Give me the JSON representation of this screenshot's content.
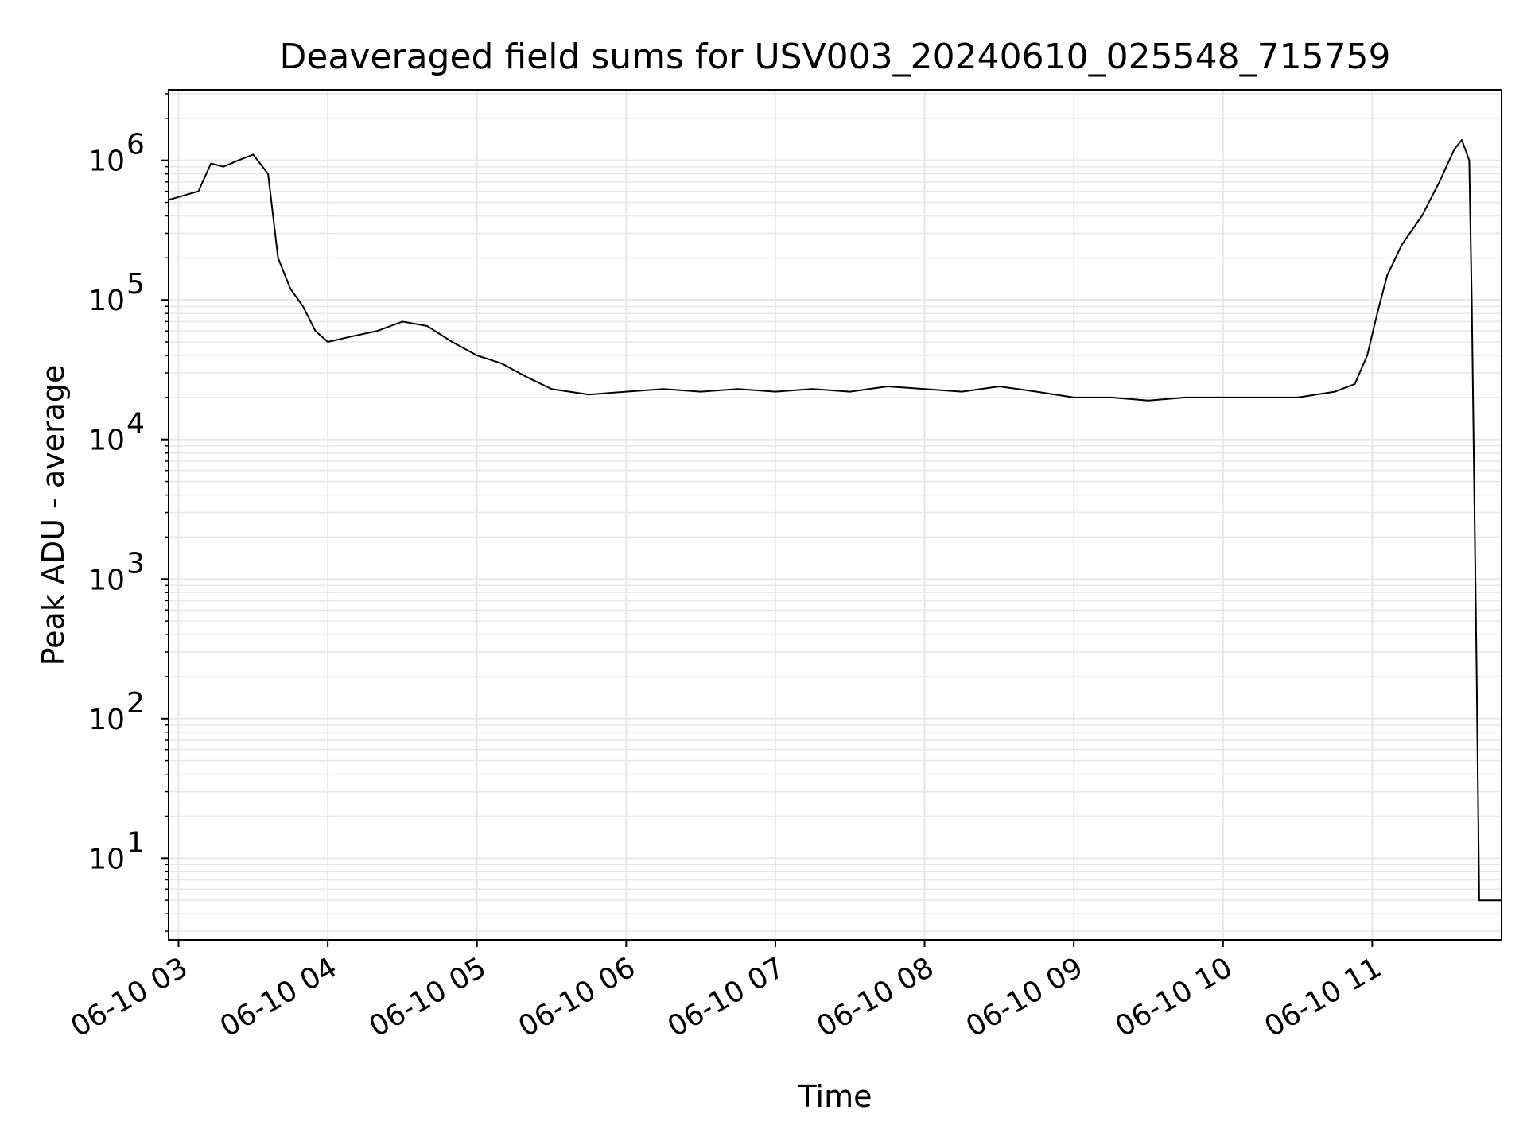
{
  "chart_data": {
    "type": "line",
    "title": "Deaveraged field sums for USV003_20240610_025548_715759",
    "xlabel": "Time",
    "ylabel": "Peak ADU - average",
    "yscale": "log",
    "ylim": [
      2.6,
      3200000
    ],
    "xlim": [
      "2024-06-10T02:56:00",
      "2024-06-10T11:52:00"
    ],
    "grid": true,
    "grid_minor": true,
    "legend": "none",
    "colors": {
      "line": "#000000",
      "grid": "#e6e6e6",
      "axes": "#000000",
      "background": "#ffffff"
    },
    "x_ticks": [
      {
        "t": "2024-06-10T03:00:00",
        "label": "06-10 03"
      },
      {
        "t": "2024-06-10T04:00:00",
        "label": "06-10 04"
      },
      {
        "t": "2024-06-10T05:00:00",
        "label": "06-10 05"
      },
      {
        "t": "2024-06-10T06:00:00",
        "label": "06-10 06"
      },
      {
        "t": "2024-06-10T07:00:00",
        "label": "06-10 07"
      },
      {
        "t": "2024-06-10T08:00:00",
        "label": "06-10 08"
      },
      {
        "t": "2024-06-10T09:00:00",
        "label": "06-10 09"
      },
      {
        "t": "2024-06-10T10:00:00",
        "label": "06-10 10"
      },
      {
        "t": "2024-06-10T11:00:00",
        "label": "06-10 11"
      }
    ],
    "y_ticks": [
      {
        "value": 10,
        "base": "10",
        "exp": "1"
      },
      {
        "value": 100,
        "base": "10",
        "exp": "2"
      },
      {
        "value": 1000,
        "base": "10",
        "exp": "3"
      },
      {
        "value": 10000,
        "base": "10",
        "exp": "4"
      },
      {
        "value": 100000,
        "base": "10",
        "exp": "5"
      },
      {
        "value": 1000000,
        "base": "10",
        "exp": "6"
      }
    ],
    "series": [
      {
        "points": [
          [
            "2024-06-10T02:56:00",
            520000
          ],
          [
            "2024-06-10T03:02:00",
            560000
          ],
          [
            "2024-06-10T03:08:00",
            600000
          ],
          [
            "2024-06-10T03:13:00",
            950000
          ],
          [
            "2024-06-10T03:18:00",
            900000
          ],
          [
            "2024-06-10T03:24:00",
            1000000
          ],
          [
            "2024-06-10T03:30:00",
            1100000
          ],
          [
            "2024-06-10T03:36:00",
            800000
          ],
          [
            "2024-06-10T03:40:00",
            200000
          ],
          [
            "2024-06-10T03:45:00",
            120000
          ],
          [
            "2024-06-10T03:50:00",
            90000
          ],
          [
            "2024-06-10T03:55:00",
            60000
          ],
          [
            "2024-06-10T04:00:00",
            50000
          ],
          [
            "2024-06-10T04:10:00",
            55000
          ],
          [
            "2024-06-10T04:20:00",
            60000
          ],
          [
            "2024-06-10T04:30:00",
            70000
          ],
          [
            "2024-06-10T04:40:00",
            65000
          ],
          [
            "2024-06-10T04:50:00",
            50000
          ],
          [
            "2024-06-10T05:00:00",
            40000
          ],
          [
            "2024-06-10T05:10:00",
            35000
          ],
          [
            "2024-06-10T05:20:00",
            28000
          ],
          [
            "2024-06-10T05:30:00",
            23000
          ],
          [
            "2024-06-10T05:45:00",
            21000
          ],
          [
            "2024-06-10T06:00:00",
            22000
          ],
          [
            "2024-06-10T06:15:00",
            23000
          ],
          [
            "2024-06-10T06:30:00",
            22000
          ],
          [
            "2024-06-10T06:45:00",
            23000
          ],
          [
            "2024-06-10T07:00:00",
            22000
          ],
          [
            "2024-06-10T07:15:00",
            23000
          ],
          [
            "2024-06-10T07:30:00",
            22000
          ],
          [
            "2024-06-10T07:45:00",
            24000
          ],
          [
            "2024-06-10T08:00:00",
            23000
          ],
          [
            "2024-06-10T08:15:00",
            22000
          ],
          [
            "2024-06-10T08:30:00",
            24000
          ],
          [
            "2024-06-10T08:45:00",
            22000
          ],
          [
            "2024-06-10T09:00:00",
            20000
          ],
          [
            "2024-06-10T09:15:00",
            20000
          ],
          [
            "2024-06-10T09:30:00",
            19000
          ],
          [
            "2024-06-10T09:45:00",
            20000
          ],
          [
            "2024-06-10T10:00:00",
            20000
          ],
          [
            "2024-06-10T10:15:00",
            20000
          ],
          [
            "2024-06-10T10:30:00",
            20000
          ],
          [
            "2024-06-10T10:45:00",
            22000
          ],
          [
            "2024-06-10T10:53:00",
            25000
          ],
          [
            "2024-06-10T10:58:00",
            40000
          ],
          [
            "2024-06-10T11:02:00",
            80000
          ],
          [
            "2024-06-10T11:06:00",
            150000
          ],
          [
            "2024-06-10T11:12:00",
            250000
          ],
          [
            "2024-06-10T11:20:00",
            400000
          ],
          [
            "2024-06-10T11:27:00",
            700000
          ],
          [
            "2024-06-10T11:33:00",
            1200000
          ],
          [
            "2024-06-10T11:36:00",
            1400000
          ],
          [
            "2024-06-10T11:39:00",
            1000000
          ],
          [
            "2024-06-10T11:40:00",
            100000
          ],
          [
            "2024-06-10T11:42:00",
            200
          ],
          [
            "2024-06-10T11:43:00",
            5
          ],
          [
            "2024-06-10T11:52:00",
            5
          ]
        ]
      }
    ]
  }
}
